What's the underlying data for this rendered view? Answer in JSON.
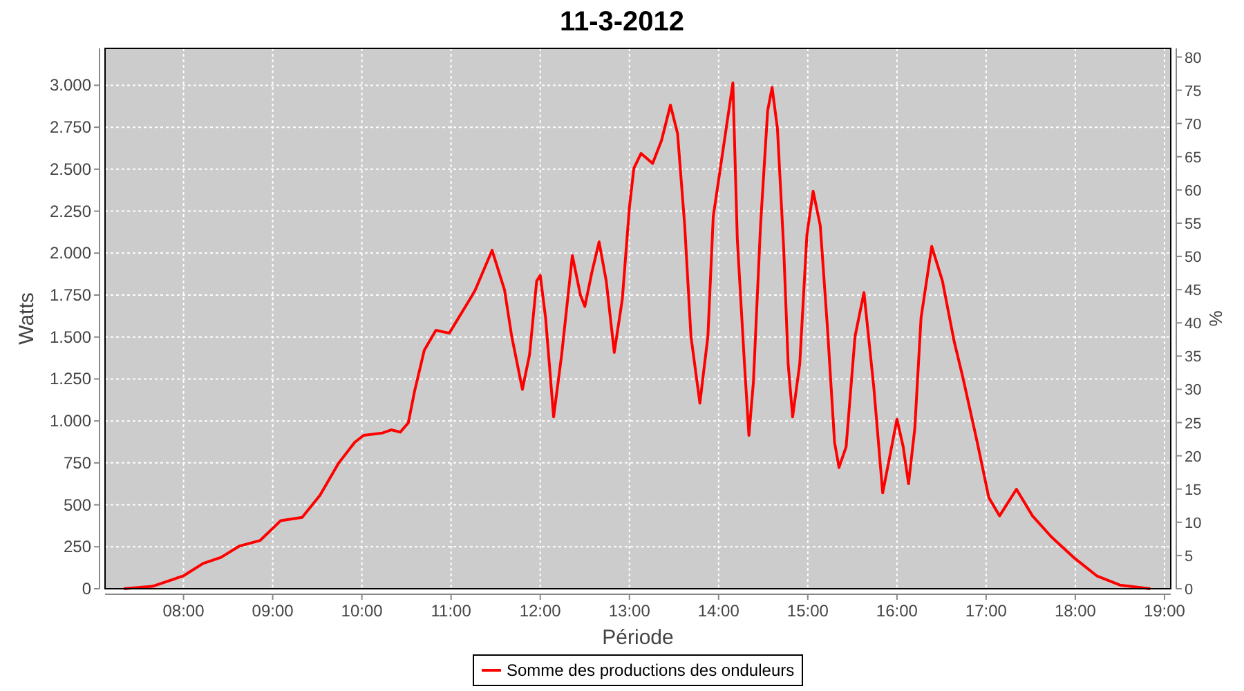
{
  "chart_data": {
    "type": "line",
    "title": "11-3-2012",
    "xlabel": "Période",
    "ylabel": "Watts",
    "y2label": "%",
    "xlim": [
      7.12,
      19.07
    ],
    "ylim": [
      0,
      3220
    ],
    "y2lim": [
      0,
      81.3
    ],
    "xticks": [
      {
        "value": 8,
        "label": "08:00"
      },
      {
        "value": 9,
        "label": "09:00"
      },
      {
        "value": 10,
        "label": "10:00"
      },
      {
        "value": 11,
        "label": "11:00"
      },
      {
        "value": 12,
        "label": "12:00"
      },
      {
        "value": 13,
        "label": "13:00"
      },
      {
        "value": 14,
        "label": "14:00"
      },
      {
        "value": 15,
        "label": "15:00"
      },
      {
        "value": 16,
        "label": "16:00"
      },
      {
        "value": 17,
        "label": "17:00"
      },
      {
        "value": 18,
        "label": "18:00"
      },
      {
        "value": 19,
        "label": "19:00"
      }
    ],
    "yticks": [
      0,
      250,
      500,
      750,
      {
        "value": 1000,
        "label": "1.000"
      },
      {
        "value": 1250,
        "label": "1.250"
      },
      {
        "value": 1500,
        "label": "1.500"
      },
      {
        "value": 1750,
        "label": "1.750"
      },
      {
        "value": 2000,
        "label": "2.000"
      },
      {
        "value": 2250,
        "label": "2.250"
      },
      {
        "value": 2500,
        "label": "2.500"
      },
      {
        "value": 2750,
        "label": "2.750"
      },
      {
        "value": 3000,
        "label": "3.000"
      }
    ],
    "y2ticks": [
      0,
      5,
      10,
      15,
      20,
      25,
      30,
      35,
      40,
      45,
      50,
      55,
      60,
      65,
      70,
      75,
      80
    ],
    "grid": true,
    "legend": "bottom",
    "marker": "none",
    "line_style": "solid",
    "series": [
      {
        "name": "Somme des productions des onduleurs",
        "color": "#ff0000",
        "x": [
          7.33,
          7.65,
          8.0,
          8.22,
          8.42,
          8.63,
          8.86,
          9.09,
          9.33,
          9.53,
          9.74,
          9.92,
          10.02,
          10.23,
          10.33,
          10.43,
          10.52,
          10.59,
          10.7,
          10.83,
          10.98,
          11.21,
          11.27,
          11.46,
          11.6,
          11.68,
          11.8,
          11.88,
          11.96,
          12.0,
          12.06,
          12.15,
          12.24,
          12.36,
          12.45,
          12.5,
          12.58,
          12.66,
          12.74,
          12.83,
          12.92,
          13.0,
          13.05,
          13.13,
          13.26,
          13.36,
          13.46,
          13.54,
          13.62,
          13.69,
          13.79,
          13.88,
          13.94,
          14.03,
          14.14,
          14.16,
          14.21,
          14.29,
          14.34,
          14.39,
          14.47,
          14.55,
          14.6,
          14.66,
          14.73,
          14.78,
          14.83,
          14.91,
          14.99,
          15.06,
          15.14,
          15.22,
          15.3,
          15.35,
          15.43,
          15.53,
          15.63,
          15.74,
          15.84,
          15.92,
          16.0,
          16.07,
          16.13,
          16.2,
          16.27,
          16.39,
          16.51,
          16.64,
          16.74,
          16.9,
          17.03,
          17.15,
          17.34,
          17.52,
          17.73,
          17.98,
          18.24,
          18.5,
          18.84
        ],
        "values": [
          0,
          14,
          77,
          151,
          187,
          255,
          288,
          406,
          425,
          557,
          749,
          873,
          914,
          928,
          947,
          933,
          988,
          1175,
          1422,
          1540,
          1523,
          1724,
          1779,
          2017,
          1779,
          1504,
          1188,
          1394,
          1834,
          1867,
          1614,
          1024,
          1394,
          1985,
          1751,
          1682,
          1888,
          2067,
          1834,
          1408,
          1724,
          2273,
          2506,
          2594,
          2534,
          2671,
          2882,
          2712,
          2163,
          1504,
          1106,
          1504,
          2218,
          null,
          null,
          3014,
          2081,
          1340,
          914,
          1229,
          2163,
          2849,
          2987,
          2740,
          2026,
          1340,
          1024,
          1340,
          2108,
          2369,
          2163,
          1559,
          873,
          722,
          846,
          1504,
          1765,
          1202,
          571,
          790,
          1010,
          846,
          626,
          955,
          1614,
          2040,
          1834,
          1477,
          1257,
          873,
          543,
          434,
          593,
          434,
          310,
          187,
          77,
          22,
          0
        ]
      }
    ]
  }
}
